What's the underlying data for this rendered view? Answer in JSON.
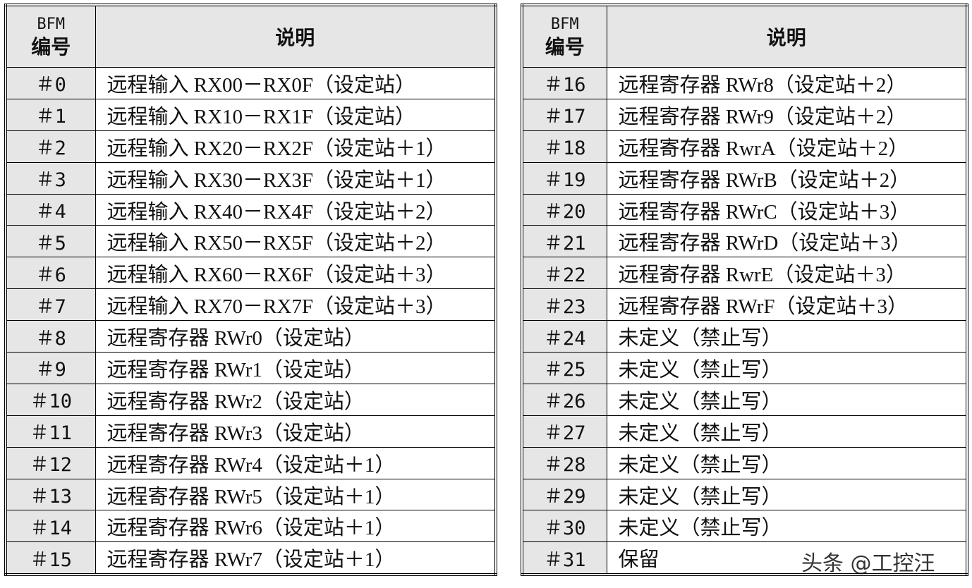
{
  "tables": [
    {
      "header": {
        "code": [
          "BFM",
          "编号"
        ],
        "desc": "说明"
      },
      "rows": [
        [
          "＃0",
          "远程输入 RX00－RX0F（设定站）"
        ],
        [
          "＃1",
          "远程输入 RX10－RX1F（设定站）"
        ],
        [
          "＃2",
          "远程输入 RX20－RX2F（设定站＋1）"
        ],
        [
          "＃3",
          "远程输入 RX30－RX3F（设定站＋1）"
        ],
        [
          "＃4",
          "远程输入 RX40－RX4F（设定站＋2）"
        ],
        [
          "＃5",
          "远程输入 RX50－RX5F（设定站＋2）"
        ],
        [
          "＃6",
          "远程输入 RX60－RX6F（设定站＋3）"
        ],
        [
          "＃7",
          "远程输入 RX70－RX7F（设定站＋3）"
        ],
        [
          "＃8",
          "远程寄存器 RWr0（设定站）"
        ],
        [
          "＃9",
          "远程寄存器 RWr1（设定站）"
        ],
        [
          "＃10",
          "远程寄存器 RWr2（设定站）"
        ],
        [
          "＃11",
          "远程寄存器 RWr3（设定站）"
        ],
        [
          "＃12",
          "远程寄存器 RWr4（设定站＋1）"
        ],
        [
          "＃13",
          "远程寄存器 RWr5（设定站＋1）"
        ],
        [
          "＃14",
          "远程寄存器 RWr6（设定站＋1）"
        ],
        [
          "＃15",
          "远程寄存器 RWr7（设定站＋1）"
        ]
      ]
    },
    {
      "header": {
        "code": [
          "BFM",
          "编号"
        ],
        "desc": "说明"
      },
      "rows": [
        [
          "＃16",
          "远程寄存器 RWr8（设定站＋2）"
        ],
        [
          "＃17",
          "远程寄存器 RWr9（设定站＋2）"
        ],
        [
          "＃18",
          "远程寄存器 RwrA（设定站＋2）"
        ],
        [
          "＃19",
          "远程寄存器 RWrB（设定站＋2）"
        ],
        [
          "＃20",
          "远程寄存器 RWrC（设定站＋3）"
        ],
        [
          "＃21",
          "远程寄存器 RWrD（设定站＋3）"
        ],
        [
          "＃22",
          "远程寄存器 RwrE（设定站＋3）"
        ],
        [
          "＃23",
          "远程寄存器 RWrF（设定站＋3）"
        ],
        [
          "＃24",
          "未定义（禁止写）"
        ],
        [
          "＃25",
          "未定义（禁止写）"
        ],
        [
          "＃26",
          "未定义（禁止写）"
        ],
        [
          "＃27",
          "未定义（禁止写）"
        ],
        [
          "＃28",
          "未定义（禁止写）"
        ],
        [
          "＃29",
          "未定义（禁止写）"
        ],
        [
          "＃30",
          "未定义（禁止写）"
        ],
        [
          "＃31",
          "保留"
        ]
      ]
    }
  ],
  "watermark": "头条 @工控汪"
}
